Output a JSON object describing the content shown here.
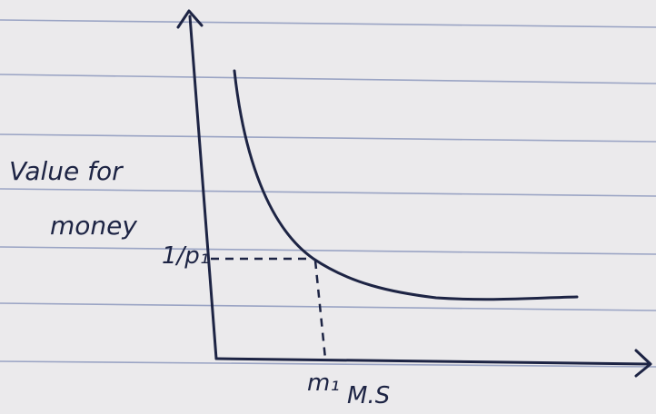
{
  "y_axis_label": [
    "Value for",
    "money"
  ],
  "y_marker_label": "1/p₁",
  "x_marker_label": "m₁",
  "x_axis_label": "M.S"
}
